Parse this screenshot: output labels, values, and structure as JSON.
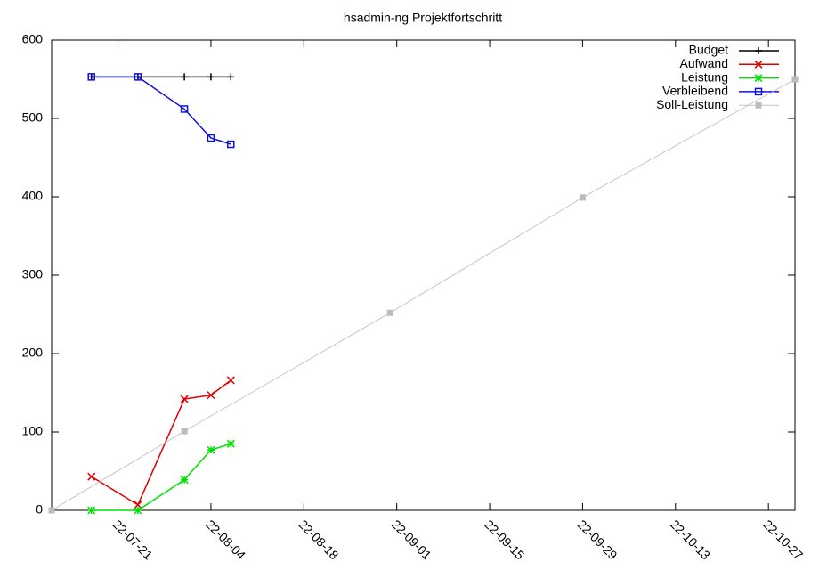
{
  "chart_data": {
    "type": "line",
    "title": "hsadmin-ng Projektfortschritt",
    "xlim": [
      "22-07-11",
      "22-10-31"
    ],
    "xticks": [
      "22-07-21",
      "22-08-04",
      "22-08-18",
      "22-09-01",
      "22-09-15",
      "22-09-29",
      "22-10-13",
      "22-10-27"
    ],
    "ylim": [
      0,
      600
    ],
    "yticks": [
      0,
      100,
      200,
      300,
      400,
      500,
      600
    ],
    "legend": "top-right",
    "series": [
      {
        "name": "Budget",
        "color": "#000000",
        "marker": "plus",
        "x": [
          "22-07-17",
          "22-07-24",
          "22-07-31",
          "22-08-04",
          "22-08-07"
        ],
        "values": [
          553,
          553,
          553,
          553,
          553
        ]
      },
      {
        "name": "Aufwand",
        "color": "#e00000",
        "marker": "cross",
        "x": [
          "22-07-17",
          "22-07-24",
          "22-07-31",
          "22-08-04",
          "22-08-07"
        ],
        "values": [
          43,
          7,
          142,
          147,
          166
        ]
      },
      {
        "name": "Leistung",
        "color": "#00e000",
        "marker": "star",
        "x": [
          "22-07-17",
          "22-07-24",
          "22-07-31",
          "22-08-04",
          "22-08-07"
        ],
        "values": [
          0,
          0,
          39,
          77,
          85
        ]
      },
      {
        "name": "Verbleibend",
        "color": "#1010e0",
        "marker": "square",
        "x": [
          "22-07-17",
          "22-07-24",
          "22-07-31",
          "22-08-04",
          "22-08-07"
        ],
        "values": [
          553,
          553,
          512,
          475,
          467
        ]
      },
      {
        "name": "Soll-Leistung",
        "color": "#bbbbbb",
        "marker": "filled-square",
        "thin": true,
        "x": [
          "22-07-11",
          "22-07-31",
          "22-08-31",
          "22-09-29",
          "22-10-31"
        ],
        "values": [
          0,
          101,
          252,
          399,
          550
        ]
      }
    ]
  }
}
